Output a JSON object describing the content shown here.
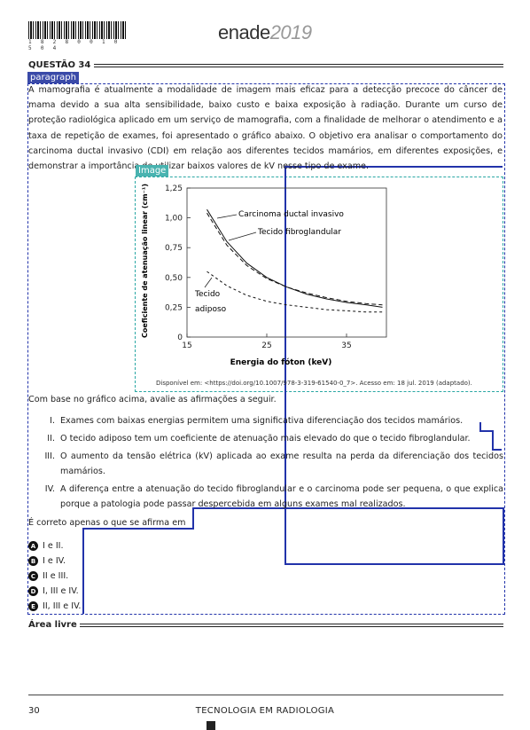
{
  "header": {
    "barcode_digits": "1 8 2 8 0 0 1 0 5 0 4",
    "logo_text": "enade",
    "logo_year": "2019"
  },
  "question": {
    "title": "QUESTÃO 34",
    "paragraph_tag": "paragraph",
    "image_tag": "Image",
    "intro": "A mamografia é atualmente a modalidade de imagem mais eficaz para a detecção precoce do câncer de mama devido a sua alta sensibilidade, baixo custo e baixa exposição à radiação. Durante um curso de proteção radiológica aplicado em um serviço de mamografia, com a finalidade de melhorar o atendimento e a taxa de repetição de exames, foi apresentado o gráfico abaixo. O objetivo era analisar o comportamento do carcinoma ductal invasivo (CDI) em relação aos diferentes tecidos mamários, em diferentes exposições, e demonstrar a importância de utilizar baixos valores de kV nesse tipo de exame.",
    "source": "Disponível em: <https://doi.org/10.1007/978-3-319-61540-0_7>. Acesso em: 18 jul. 2019 (adaptado).",
    "lead": "Com base no gráfico acima, avalie as afirmações a seguir.",
    "items": [
      {
        "num": "I.",
        "text": "Exames com baixas energias permitem uma significativa diferenciação dos tecidos mamários."
      },
      {
        "num": "II.",
        "text": "O tecido adiposo tem um coeficiente de atenuação mais elevado do que o tecido fibroglandular."
      },
      {
        "num": "III.",
        "text": "O aumento da tensão elétrica (kV) aplicada ao exame resulta na perda da diferenciação dos tecidos mamários."
      },
      {
        "num": "IV.",
        "text": "A diferença entre a atenuação do tecido fibroglandular e o carcinoma pode ser pequena, o que explica porque a patologia pode passar despercebida em alguns exames mal realizados."
      }
    ],
    "conclusion": "É correto apenas o que se afirma em",
    "options": [
      {
        "letter": "A",
        "text": "I e II."
      },
      {
        "letter": "B",
        "text": "I e IV."
      },
      {
        "letter": "C",
        "text": "II e III."
      },
      {
        "letter": "D",
        "text": "I, III e IV."
      },
      {
        "letter": "E",
        "text": "II, III e IV."
      }
    ]
  },
  "area_livre": "Área livre",
  "footer": {
    "page_number": "30",
    "course": "TECNOLOGIA EM RADIOLOGIA"
  },
  "chart_data": {
    "type": "line",
    "title": "",
    "xlabel": "Energia do fóton (keV)",
    "ylabel": "Coeficiente de atenuação linear (cm⁻¹)",
    "xlim": [
      15,
      40
    ],
    "ylim": [
      0,
      1.25
    ],
    "x_ticks": [
      15,
      25,
      35
    ],
    "y_ticks": [
      0,
      0.25,
      0.5,
      0.75,
      1.0,
      1.25
    ],
    "x_tick_labels": [
      "15",
      "25",
      "35"
    ],
    "y_tick_labels": [
      "0",
      "0,25",
      "0,50",
      "0,75",
      "1,00",
      "1,25"
    ],
    "grid": false,
    "annotations": [
      "Carcinoma ductal invasivo",
      "Tecido fibroglandular",
      "Tecido",
      "adiposo"
    ],
    "series": [
      {
        "style": "solid",
        "x": [
          17.5,
          20,
          22.5,
          25,
          27.5,
          30,
          32.5,
          35,
          37.5,
          39.5
        ],
        "y": [
          1.07,
          0.8,
          0.62,
          0.5,
          0.42,
          0.36,
          0.32,
          0.29,
          0.27,
          0.25
        ]
      },
      {
        "style": "dashed",
        "x": [
          17.5,
          20,
          22.5,
          25,
          27.5,
          30,
          32.5,
          35,
          37.5,
          39.5
        ],
        "y": [
          1.04,
          0.77,
          0.6,
          0.49,
          0.42,
          0.37,
          0.33,
          0.3,
          0.28,
          0.27
        ]
      },
      {
        "style": "dashed-fine",
        "x": [
          17.5,
          20,
          22.5,
          25,
          27.5,
          30,
          32.5,
          35,
          37.5,
          39.5
        ],
        "y": [
          0.55,
          0.43,
          0.35,
          0.3,
          0.27,
          0.25,
          0.23,
          0.22,
          0.21,
          0.21
        ]
      }
    ]
  }
}
